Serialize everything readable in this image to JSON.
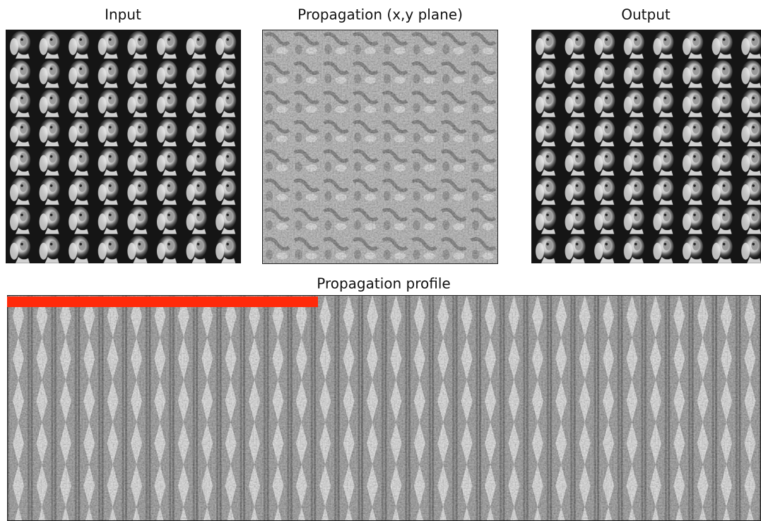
{
  "panels": [
    {
      "title": "Input"
    },
    {
      "title": "Propagation (x,y plane)"
    },
    {
      "title": "Output"
    }
  ],
  "profile": {
    "title": "Propagation profile"
  }
}
